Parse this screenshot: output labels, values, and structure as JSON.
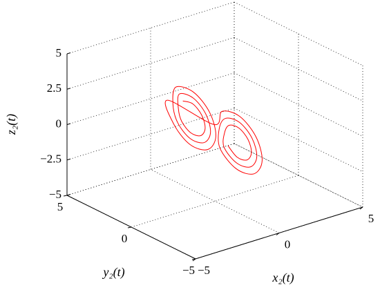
{
  "chart_data": {
    "type": "line3d",
    "xlabel": "x₂(t)",
    "ylabel": "y₂(t)",
    "zlabel": "z₂(t)",
    "color": "#ff0000",
    "grid": true,
    "xlim": [
      -5,
      5
    ],
    "ylim": [
      -5,
      5
    ],
    "zlim": [
      -5,
      5
    ],
    "xticks": [
      {
        "value": -5,
        "label": "−5"
      },
      0,
      5
    ],
    "yticks": [
      {
        "value": -5,
        "label": "−5"
      },
      0,
      5
    ],
    "zticks": [
      {
        "value": -5,
        "label": "−5"
      },
      {
        "value": -2.5,
        "label": "−2.5"
      },
      0,
      2.5,
      5
    ],
    "x": [
      -1.3,
      -0.78,
      -0.4,
      -0.36,
      -0.7,
      -1.22,
      -1.6,
      -1.64,
      -1.42,
      -0.69,
      -0.16,
      -0.1,
      -0.58,
      -1.31,
      -1.84,
      -1.9,
      -1.54,
      -0.6,
      0.08,
      0.15,
      -0.46,
      -1.4,
      -2.08,
      -2.15,
      -0.15,
      0.46,
      1.4,
      2.08,
      2.15,
      1.54,
      0.6,
      -0.08,
      0.1,
      0.58,
      1.31,
      1.84,
      1.9,
      1.42,
      0.69,
      0.16,
      0.36,
      0.7,
      1.22,
      1.6,
      1.64,
      1.3,
      0.78,
      0.4
    ],
    "y": [
      0.8,
      0.71,
      0.5,
      0.29,
      0.2,
      0.29,
      0.5,
      0.71,
      0.92,
      0.79,
      0.5,
      0.21,
      0.08,
      0.21,
      0.5,
      0.79,
      1.04,
      0.88,
      0.5,
      0.12,
      -0.04,
      0.12,
      0.5,
      0.88,
      -0.12,
      0.04,
      -0.12,
      -0.5,
      -0.88,
      -1.04,
      -0.88,
      -0.5,
      -0.21,
      -0.08,
      -0.21,
      -0.5,
      -0.79,
      -0.92,
      -0.79,
      -0.5,
      -0.29,
      -0.2,
      -0.29,
      -0.5,
      -0.71,
      -0.8,
      -0.71,
      -0.5
    ],
    "z": [
      2.2,
      1.85,
      1,
      0.15,
      -0.2,
      0.15,
      1,
      1.85,
      2.68,
      2.19,
      1,
      -0.19,
      -0.68,
      -0.19,
      1,
      2.19,
      3.16,
      2.53,
      1,
      -0.53,
      -1.16,
      -0.53,
      1,
      2.53,
      0.53,
      1.16,
      0.53,
      -1,
      -2.53,
      -3.16,
      -2.53,
      -1,
      0.19,
      0.68,
      0.19,
      -1,
      -2.19,
      -2.68,
      -2.19,
      -1,
      -0.15,
      0.2,
      -0.15,
      -1,
      -1.85,
      -2.2,
      -1.85,
      -1
    ]
  }
}
